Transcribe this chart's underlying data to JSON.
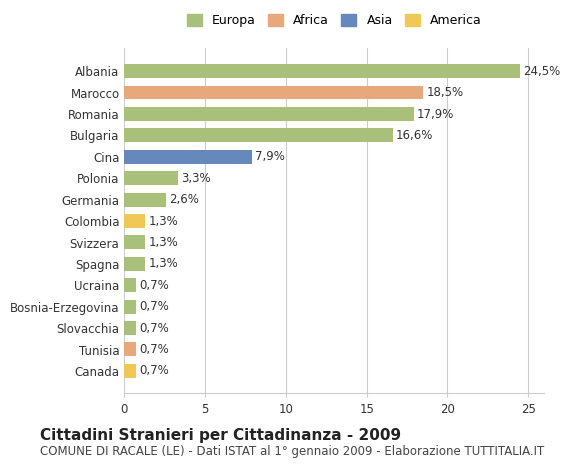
{
  "categories": [
    "Albania",
    "Marocco",
    "Romania",
    "Bulgaria",
    "Cina",
    "Polonia",
    "Germania",
    "Colombia",
    "Svizzera",
    "Spagna",
    "Ucraina",
    "Bosnia-Erzegovina",
    "Slovacchia",
    "Tunisia",
    "Canada"
  ],
  "values": [
    24.5,
    18.5,
    17.9,
    16.6,
    7.9,
    3.3,
    2.6,
    1.3,
    1.3,
    1.3,
    0.7,
    0.7,
    0.7,
    0.7,
    0.7
  ],
  "labels": [
    "24,5%",
    "18,5%",
    "17,9%",
    "16,6%",
    "7,9%",
    "3,3%",
    "2,6%",
    "1,3%",
    "1,3%",
    "1,3%",
    "0,7%",
    "0,7%",
    "0,7%",
    "0,7%",
    "0,7%"
  ],
  "continents": [
    "Europa",
    "Africa",
    "Europa",
    "Europa",
    "Asia",
    "Europa",
    "Europa",
    "America",
    "Europa",
    "Europa",
    "Europa",
    "Europa",
    "Europa",
    "Africa",
    "America"
  ],
  "colors": {
    "Europa": "#a8c07a",
    "Africa": "#e8a87c",
    "Asia": "#6688bb",
    "America": "#f0c855"
  },
  "legend_order": [
    "Europa",
    "Africa",
    "Asia",
    "America"
  ],
  "xlim": [
    0,
    26
  ],
  "xticks": [
    0,
    5,
    10,
    15,
    20,
    25
  ],
  "title": "Cittadini Stranieri per Cittadinanza - 2009",
  "subtitle": "COMUNE DI RACALE (LE) - Dati ISTAT al 1° gennaio 2009 - Elaborazione TUTTITALIA.IT",
  "background_color": "#ffffff",
  "grid_color": "#cccccc",
  "bar_height": 0.65,
  "title_fontsize": 11,
  "subtitle_fontsize": 8.5,
  "label_fontsize": 8.5,
  "tick_fontsize": 8.5,
  "legend_fontsize": 9
}
